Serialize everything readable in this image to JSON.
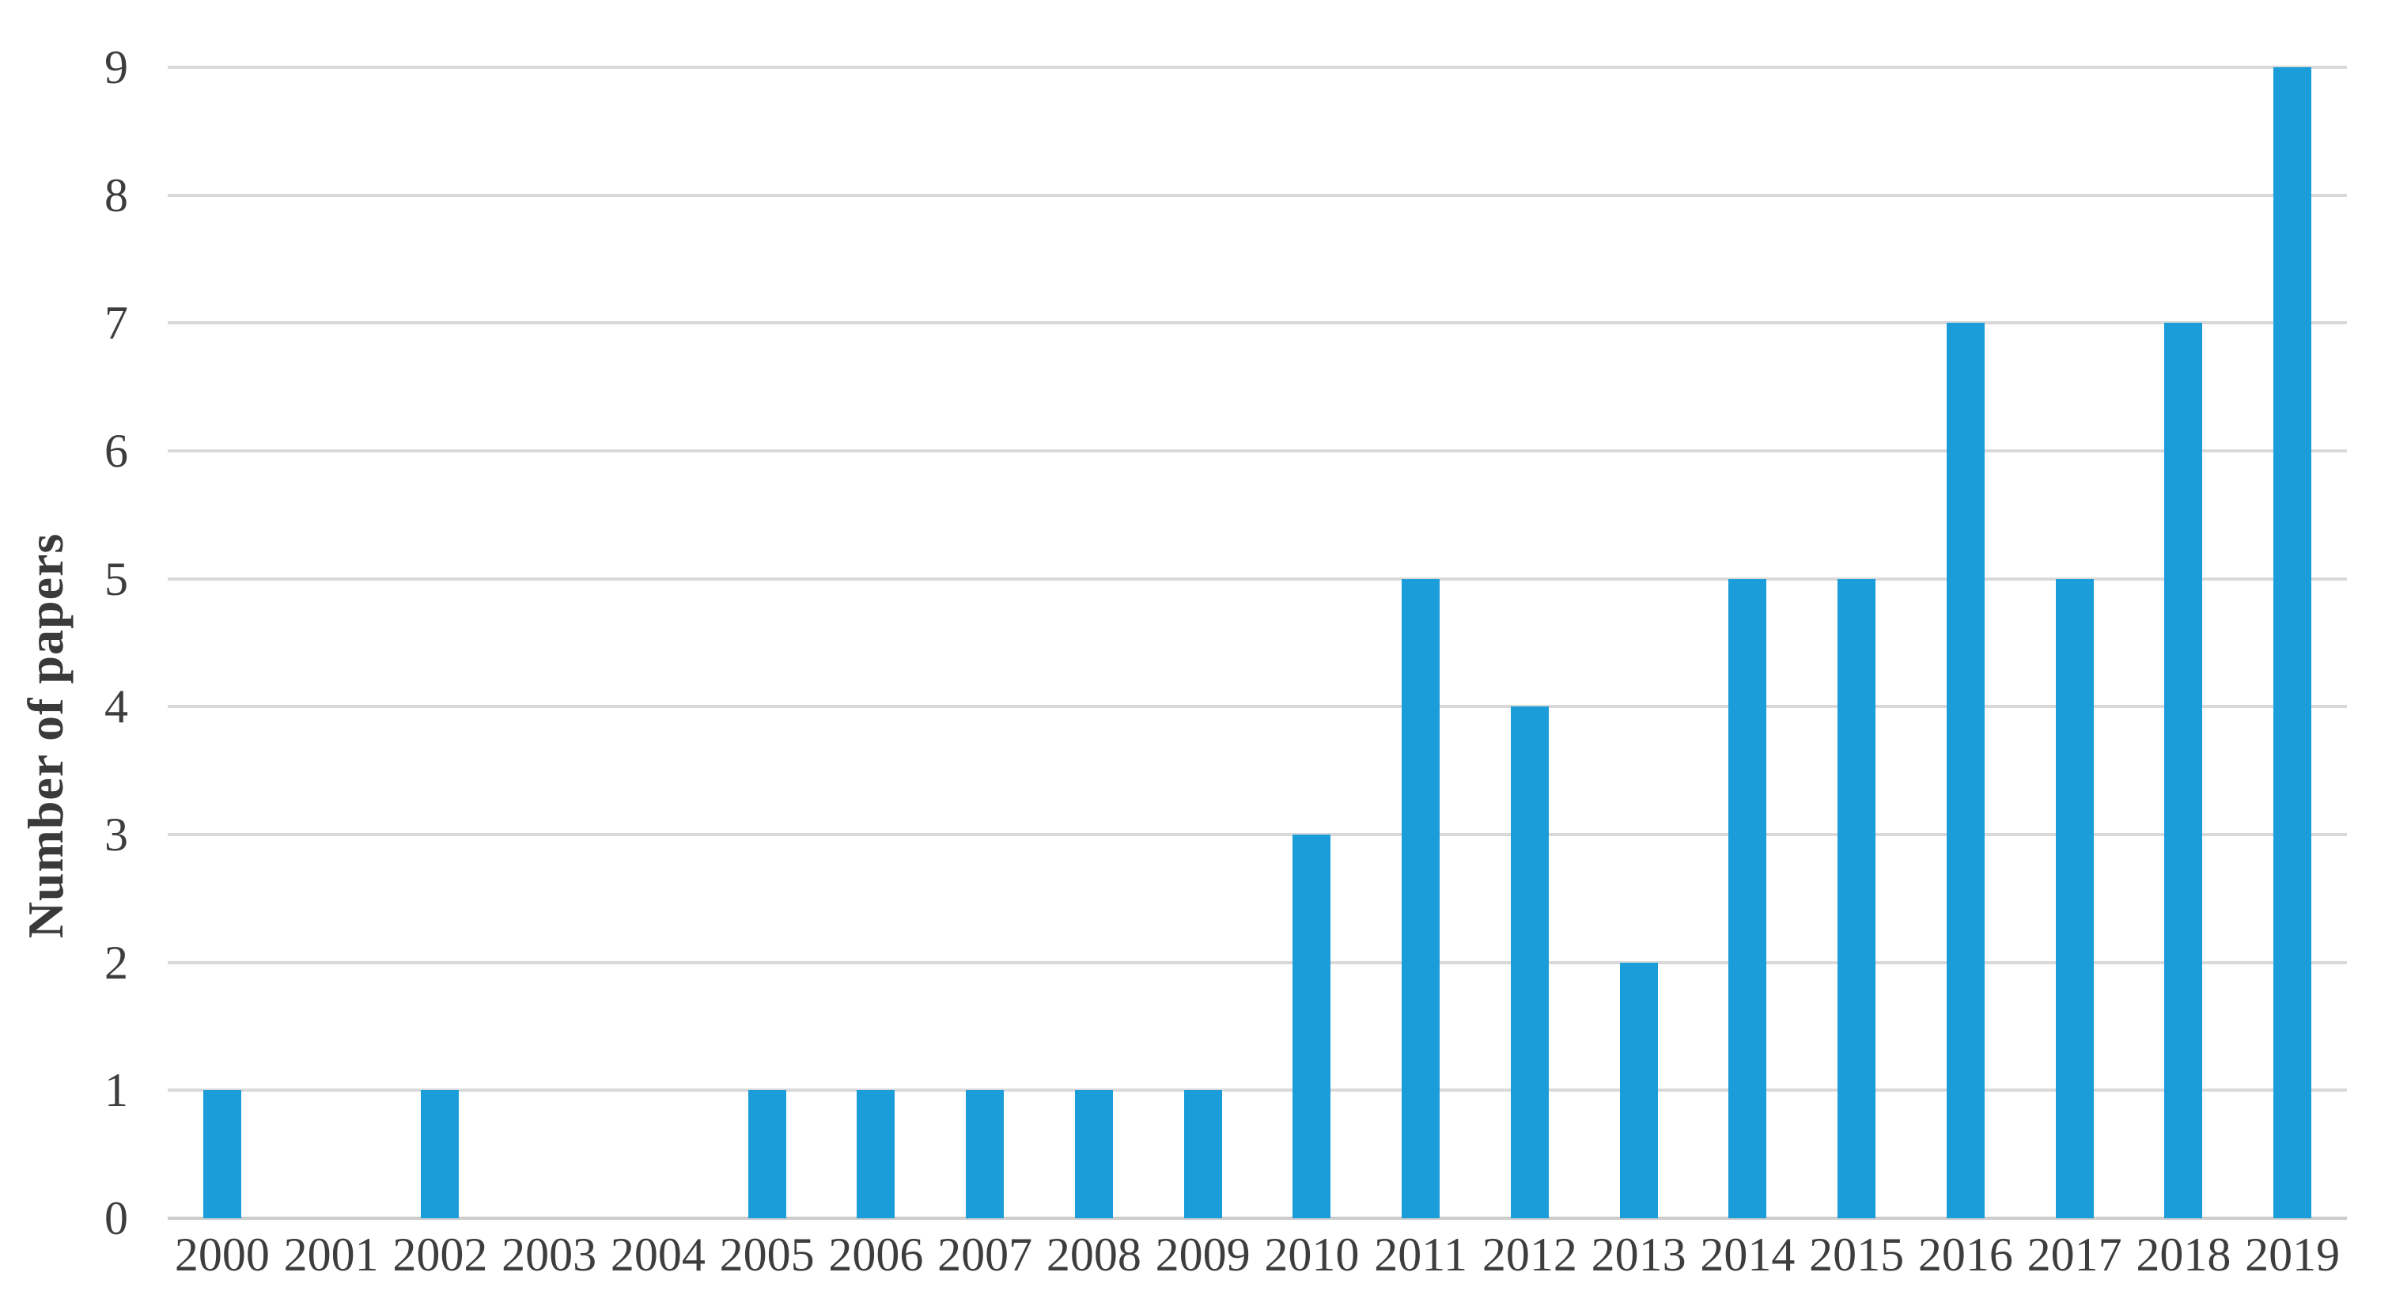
{
  "chart_data": {
    "type": "bar",
    "title": "",
    "xlabel": "",
    "ylabel": "Number of papers",
    "categories": [
      "2000",
      "2001",
      "2002",
      "2003",
      "2004",
      "2005",
      "2006",
      "2007",
      "2008",
      "2009",
      "2010",
      "2011",
      "2012",
      "2013",
      "2014",
      "2015",
      "2016",
      "2017",
      "2018",
      "2019"
    ],
    "values": [
      1,
      0,
      1,
      0,
      0,
      1,
      1,
      1,
      1,
      1,
      3,
      5,
      4,
      2,
      5,
      5,
      7,
      5,
      7,
      9
    ],
    "ylim": [
      0,
      9
    ],
    "yticks": [
      0,
      1,
      2,
      3,
      4,
      5,
      6,
      7,
      8,
      9
    ],
    "grid": true,
    "legend_position": "none",
    "bar_color": "#1B9DD9",
    "gridline_color": "#D9D9D9",
    "baseline_color": "#CCCCCC",
    "text_color": "#3D3D3D"
  }
}
